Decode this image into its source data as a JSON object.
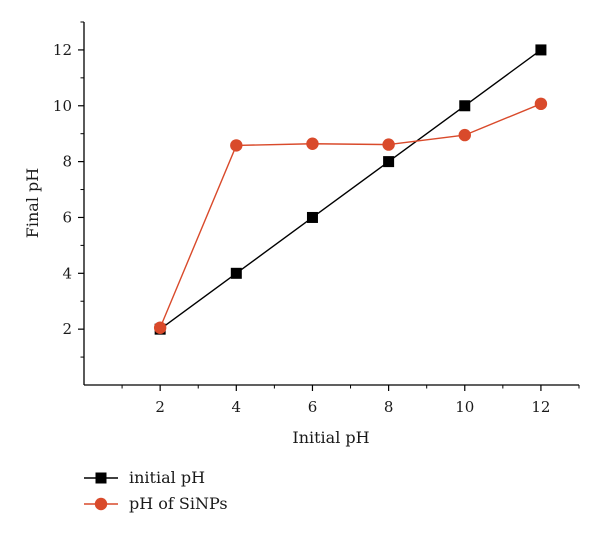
{
  "chart_data": {
    "type": "line",
    "title": "",
    "xlabel": "Initial pH",
    "ylabel": "Final pH",
    "x": [
      2,
      4,
      6,
      8,
      10,
      12
    ],
    "xlim": [
      0,
      13
    ],
    "ylim": [
      0,
      13
    ],
    "xticks": [
      "2",
      "4",
      "6",
      "8",
      "10",
      "12"
    ],
    "yticks": [
      "2",
      "4",
      "6",
      "8",
      "10",
      "12"
    ],
    "grid": false,
    "legend_position": "bottom-left, below plot",
    "series": [
      {
        "name": "initial pH",
        "values": [
          2,
          4,
          6,
          8,
          10,
          12
        ],
        "color": "#000000",
        "marker": "square"
      },
      {
        "name": "pH of SiNPs",
        "values": [
          2.05,
          8.58,
          8.64,
          8.61,
          8.95,
          10.07
        ],
        "color": "#d94a2b",
        "marker": "circle"
      }
    ]
  }
}
